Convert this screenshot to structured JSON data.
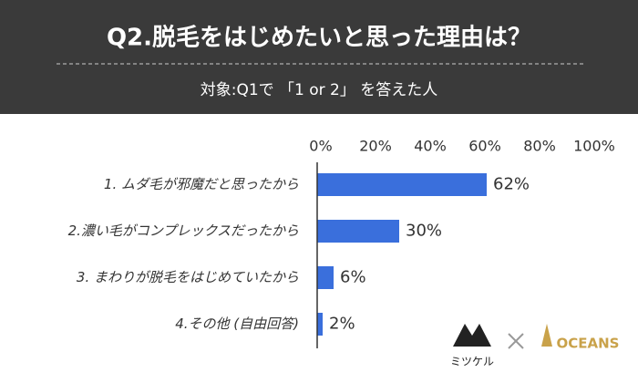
{
  "chart_data": {
    "type": "hbar",
    "title": "Q2.脱毛をはじめたいと思った理由は？",
    "subtitle": "対象:Q1で 「1 or 2」 を答えた人",
    "categories": [
      "1. ムダ毛が邪魔だと思ったから",
      "2.濃い毛がコンプレックスだったから",
      "3. まわりが脱毛をはじめていたから",
      "4.その他 (自由回答)"
    ],
    "values": [
      62,
      30,
      6,
      2
    ],
    "value_labels": [
      "62%",
      "30%",
      "6%",
      "2%"
    ],
    "color": "#3a6fdc",
    "xlim": [
      0,
      100
    ],
    "xticks": [
      {
        "value": 0,
        "label": "0%"
      },
      {
        "value": 20,
        "label": "20%"
      },
      {
        "value": 40,
        "label": "40%"
      },
      {
        "value": 60,
        "label": "60%"
      },
      {
        "value": 80,
        "label": "80%"
      },
      {
        "value": 100,
        "label": "100%"
      }
    ],
    "grid": false
  },
  "logos": {
    "left": "ミツケル",
    "right": "OCEANS"
  }
}
